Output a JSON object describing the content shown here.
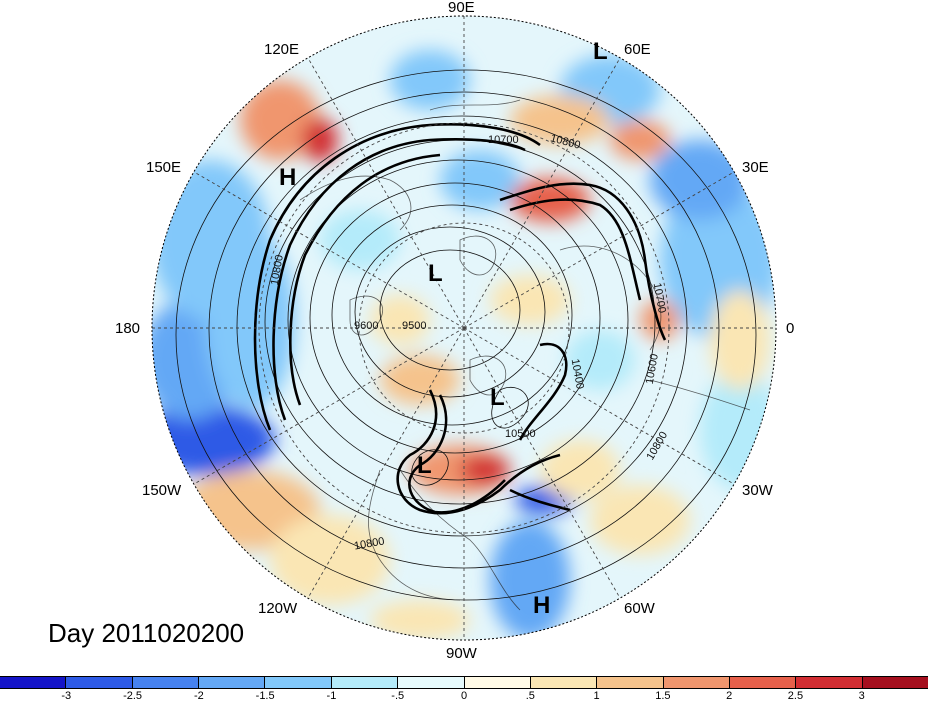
{
  "title": "Day 2011020200",
  "longitude_labels": {
    "e90": "90E",
    "e60": "60E",
    "e30": "30E",
    "zero": "0",
    "w30": "30W",
    "w60": "60W",
    "w90": "90W",
    "w120": "120W",
    "w150": "150W",
    "d180": "180",
    "e150": "150E",
    "e120": "120E"
  },
  "pressure_centers": [
    {
      "type": "L",
      "region": "central Arctic"
    },
    {
      "type": "L",
      "region": "Baffin / Greenland"
    },
    {
      "type": "L",
      "region": "central North America"
    },
    {
      "type": "L",
      "region": "far northern Asia"
    },
    {
      "type": "H",
      "region": "eastern Siberia"
    },
    {
      "type": "H",
      "region": "western Atlantic"
    }
  ],
  "contour_labels": [
    "10700",
    "10800",
    "9600",
    "9500",
    "10400",
    "10600",
    "10700",
    "10800",
    "10800",
    "10500",
    "10800"
  ],
  "colorbar": {
    "ticks": [
      "-3",
      "-2.5",
      "-2",
      "-1.5",
      "-1",
      "-.5",
      "0",
      ".5",
      "1",
      "1.5",
      "2",
      "2.5",
      "3"
    ],
    "colors": [
      "#1414c8",
      "#2d5ae6",
      "#4682f0",
      "#64a8f5",
      "#82c8fa",
      "#b4ebfa",
      "#e6fafc",
      "#fffae6",
      "#fae6b4",
      "#f5c38c",
      "#f0966e",
      "#e6604b",
      "#d22d32",
      "#a50f1e"
    ]
  },
  "map": {
    "projection": "north polar stereographic",
    "field": "shaded anomaly with geopotential height contours",
    "contour_interval": 100
  }
}
